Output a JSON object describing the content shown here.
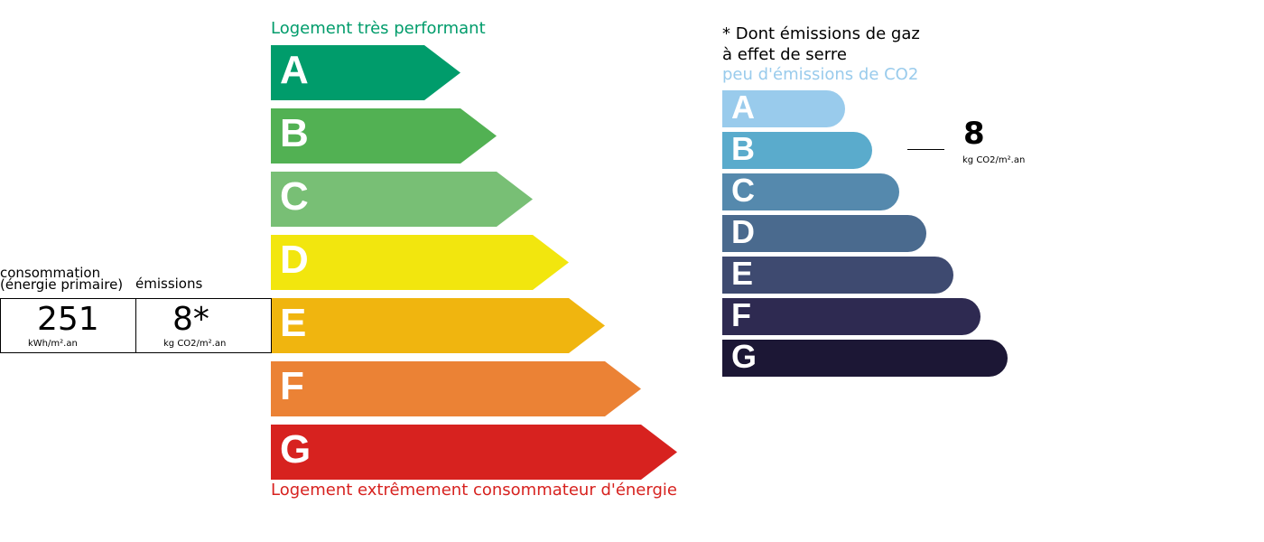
{
  "energy": {
    "top_label": "Logement très performant",
    "bottom_label": "Logement extrêmement consommateur d'énergie",
    "top_color": "#009c6b",
    "bottom_color": "#d7221f",
    "classes": [
      {
        "letter": "A",
        "color": "#009c6b"
      },
      {
        "letter": "B",
        "color": "#52b153"
      },
      {
        "letter": "C",
        "color": "#78bf75"
      },
      {
        "letter": "D",
        "color": "#f2e60e"
      },
      {
        "letter": "E",
        "color": "#f0b50f"
      },
      {
        "letter": "F",
        "color": "#eb8235"
      },
      {
        "letter": "G",
        "color": "#d7221f"
      }
    ]
  },
  "summary": {
    "consumption_label_1": "consommation",
    "consumption_label_2": "(énergie primaire)",
    "consumption_value": "251",
    "consumption_unit": "kWh/m².an",
    "emissions_label": "émissions",
    "emissions_value": "8*",
    "emissions_unit": "kg CO2/m².an"
  },
  "ges": {
    "note_1": "* Dont émissions de gaz",
    "note_2": "à effet de serre",
    "top_label": "peu d'émissions de CO2",
    "top_color": "#99cbec",
    "value": "8",
    "unit": "kg CO2/m².an",
    "current_class": "B",
    "classes": [
      {
        "letter": "A",
        "color": "#99cbec"
      },
      {
        "letter": "B",
        "color": "#5aabcc"
      },
      {
        "letter": "C",
        "color": "#5589ad"
      },
      {
        "letter": "D",
        "color": "#4a6a8e"
      },
      {
        "letter": "E",
        "color": "#3e4a70"
      },
      {
        "letter": "F",
        "color": "#2e2a51"
      },
      {
        "letter": "G",
        "color": "#1c1735"
      }
    ]
  }
}
